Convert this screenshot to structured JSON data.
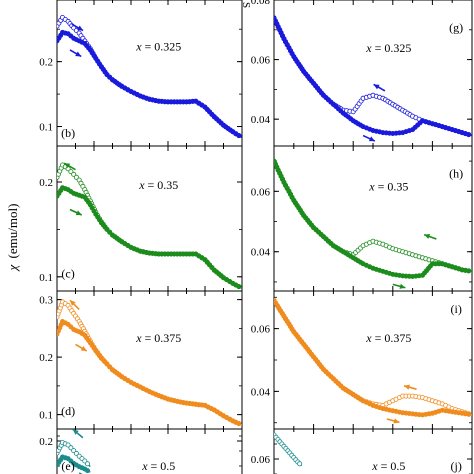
{
  "figure": {
    "ylabel_sym": "χ",
    "ylabel_unit": "(emu/mol)"
  },
  "chart_data": [
    {
      "type": "scatter",
      "panel": "(b)",
      "composition": "x = 0.325",
      "color": "#1a1adc",
      "ylim": [
        0.07,
        0.295
      ],
      "yticks": [
        0.1,
        0.2
      ],
      "ytick_labels": [
        "0.1",
        "0.2"
      ],
      "arrows": [
        "down-right along upper (open) branch near peak",
        "down-right along lower (solid) branch near peak"
      ],
      "series": [
        {
          "marker": "open",
          "x": [
            0.0,
            0.03,
            0.06,
            0.09,
            0.12,
            0.15,
            0.18,
            0.21,
            0.24,
            0.27,
            0.3,
            0.35,
            0.4,
            0.45,
            0.5,
            0.55,
            0.6,
            0.65,
            0.7,
            0.75,
            0.8,
            0.85,
            0.9,
            0.95,
            1.0
          ],
          "y": [
            0.255,
            0.268,
            0.262,
            0.252,
            0.244,
            0.232,
            0.22,
            0.205,
            0.192,
            0.18,
            0.172,
            0.162,
            0.154,
            0.147,
            0.142,
            0.139,
            0.138,
            0.138,
            0.138,
            0.139,
            0.13,
            0.115,
            0.102,
            0.092,
            0.083
          ]
        },
        {
          "marker": "solid",
          "x": [
            0.0,
            0.03,
            0.06,
            0.09,
            0.12,
            0.15,
            0.18,
            0.21,
            0.24,
            0.27,
            0.3,
            0.35,
            0.4,
            0.45,
            0.5,
            0.55,
            0.6,
            0.65,
            0.7,
            0.75,
            0.8,
            0.85,
            0.9,
            0.95,
            1.0
          ],
          "y": [
            0.232,
            0.245,
            0.243,
            0.236,
            0.232,
            0.228,
            0.218,
            0.205,
            0.192,
            0.18,
            0.172,
            0.162,
            0.154,
            0.147,
            0.142,
            0.139,
            0.138,
            0.138,
            0.138,
            0.139,
            0.13,
            0.115,
            0.102,
            0.092,
            0.083
          ]
        }
      ]
    },
    {
      "type": "scatter",
      "panel": "(g)",
      "composition": "x = 0.325",
      "color": "#1a1adc",
      "ylim": [
        0.031,
        0.08
      ],
      "yticks": [
        0.04,
        0.06,
        0.08
      ],
      "ytick_labels": [
        "0.04",
        "0.06",
        "0.08"
      ],
      "arrows": [
        "up-left above warming bump",
        "down-right below cooling minimum"
      ],
      "series": [
        {
          "marker": "open",
          "x": [
            0.0,
            0.05,
            0.1,
            0.15,
            0.2,
            0.25,
            0.3,
            0.35,
            0.4,
            0.45,
            0.5,
            0.55,
            0.6,
            0.65,
            0.7,
            0.75,
            0.8,
            0.85,
            0.9,
            0.95,
            1.0
          ],
          "y": [
            0.074,
            0.067,
            0.061,
            0.056,
            0.052,
            0.048,
            0.045,
            0.043,
            0.0425,
            0.047,
            0.048,
            0.047,
            0.045,
            0.043,
            0.041,
            0.0395,
            0.0385,
            0.0375,
            0.0365,
            0.0355,
            0.0345
          ]
        },
        {
          "marker": "solid",
          "x": [
            0.0,
            0.05,
            0.1,
            0.15,
            0.2,
            0.25,
            0.3,
            0.35,
            0.4,
            0.45,
            0.5,
            0.55,
            0.6,
            0.65,
            0.7,
            0.75,
            0.8,
            0.85,
            0.9,
            0.95,
            1.0
          ],
          "y": [
            0.074,
            0.067,
            0.061,
            0.056,
            0.052,
            0.048,
            0.045,
            0.042,
            0.0395,
            0.0375,
            0.0362,
            0.0355,
            0.0352,
            0.0355,
            0.0365,
            0.0395,
            0.0385,
            0.0375,
            0.0365,
            0.0355,
            0.0345
          ]
        }
      ]
    },
    {
      "type": "scatter",
      "panel": "(c)",
      "composition": "x = 0.35",
      "color": "#1c8c1c",
      "ylim": [
        0.085,
        0.238
      ],
      "yticks": [
        0.1,
        0.2
      ],
      "ytick_labels": [
        "0.1",
        "0.2"
      ],
      "arrows": [
        "up-left along upper branch",
        "down-right along lower branch"
      ],
      "series": [
        {
          "marker": "open",
          "x": [
            0.0,
            0.03,
            0.06,
            0.09,
            0.12,
            0.15,
            0.18,
            0.21,
            0.24,
            0.27,
            0.3,
            0.35,
            0.4,
            0.45,
            0.5,
            0.55,
            0.6,
            0.65,
            0.7,
            0.75,
            0.8,
            0.85,
            0.9,
            0.95,
            1.0
          ],
          "y": [
            0.205,
            0.218,
            0.214,
            0.208,
            0.202,
            0.192,
            0.18,
            0.168,
            0.158,
            0.15,
            0.144,
            0.137,
            0.131,
            0.127,
            0.125,
            0.124,
            0.124,
            0.124,
            0.124,
            0.124,
            0.118,
            0.107,
            0.099,
            0.093,
            0.088
          ]
        },
        {
          "marker": "solid",
          "x": [
            0.0,
            0.03,
            0.06,
            0.09,
            0.12,
            0.15,
            0.18,
            0.21,
            0.24,
            0.27,
            0.3,
            0.35,
            0.4,
            0.45,
            0.5,
            0.55,
            0.6,
            0.65,
            0.7,
            0.75,
            0.8,
            0.85,
            0.9,
            0.95,
            1.0
          ],
          "y": [
            0.185,
            0.194,
            0.192,
            0.188,
            0.186,
            0.184,
            0.176,
            0.166,
            0.157,
            0.15,
            0.144,
            0.137,
            0.131,
            0.127,
            0.125,
            0.124,
            0.124,
            0.124,
            0.124,
            0.124,
            0.118,
            0.107,
            0.099,
            0.093,
            0.088
          ]
        }
      ]
    },
    {
      "type": "scatter",
      "panel": "(h)",
      "composition": "x = 0.35",
      "color": "#1c8c1c",
      "ylim": [
        0.027,
        0.075
      ],
      "yticks": [
        0.04,
        0.06
      ],
      "ytick_labels": [
        "0.04",
        "0.06"
      ],
      "arrows": [
        "up-left above warming bump",
        "down-right below cooling minimum"
      ],
      "series": [
        {
          "marker": "open",
          "x": [
            0.0,
            0.05,
            0.1,
            0.15,
            0.2,
            0.25,
            0.3,
            0.35,
            0.4,
            0.45,
            0.5,
            0.55,
            0.6,
            0.65,
            0.7,
            0.75,
            0.8,
            0.85,
            0.9,
            0.95,
            1.0
          ],
          "y": [
            0.07,
            0.063,
            0.057,
            0.052,
            0.048,
            0.045,
            0.042,
            0.04,
            0.039,
            0.042,
            0.0435,
            0.0425,
            0.041,
            0.04,
            0.039,
            0.038,
            0.037,
            0.036,
            0.035,
            0.034,
            0.0335
          ]
        },
        {
          "marker": "solid",
          "x": [
            0.0,
            0.05,
            0.1,
            0.15,
            0.2,
            0.25,
            0.3,
            0.35,
            0.4,
            0.45,
            0.5,
            0.55,
            0.6,
            0.65,
            0.7,
            0.75,
            0.8,
            0.85,
            0.9,
            0.95,
            1.0
          ],
          "y": [
            0.07,
            0.063,
            0.057,
            0.052,
            0.048,
            0.045,
            0.042,
            0.04,
            0.038,
            0.036,
            0.0345,
            0.0335,
            0.0325,
            0.032,
            0.0318,
            0.0322,
            0.036,
            0.036,
            0.035,
            0.034,
            0.0335
          ]
        }
      ]
    },
    {
      "type": "scatter",
      "panel": "(d)",
      "composition": "x = 0.375",
      "color": "#f08c1e",
      "ylim": [
        0.075,
        0.315
      ],
      "yticks": [
        0.1,
        0.2,
        0.3
      ],
      "ytick_labels": [
        "0.1",
        "0.2",
        "0.3"
      ],
      "arrows": [
        "up-left along upper branch",
        "down-right along lower branch"
      ],
      "series": [
        {
          "marker": "open",
          "x": [
            0.0,
            0.03,
            0.06,
            0.09,
            0.12,
            0.15,
            0.18,
            0.21,
            0.24,
            0.27,
            0.3,
            0.35,
            0.4,
            0.45,
            0.5,
            0.55,
            0.6,
            0.65,
            0.7,
            0.75,
            0.8,
            0.85,
            0.9,
            0.95,
            1.0
          ],
          "y": [
            0.27,
            0.296,
            0.29,
            0.276,
            0.262,
            0.245,
            0.228,
            0.212,
            0.199,
            0.188,
            0.178,
            0.166,
            0.156,
            0.148,
            0.14,
            0.133,
            0.127,
            0.123,
            0.12,
            0.118,
            0.116,
            0.108,
            0.098,
            0.089,
            0.082
          ]
        },
        {
          "marker": "solid",
          "x": [
            0.0,
            0.03,
            0.06,
            0.09,
            0.12,
            0.15,
            0.18,
            0.21,
            0.24,
            0.27,
            0.3,
            0.35,
            0.4,
            0.45,
            0.5,
            0.55,
            0.6,
            0.65,
            0.7,
            0.75,
            0.8,
            0.85,
            0.9,
            0.95,
            1.0
          ],
          "y": [
            0.24,
            0.262,
            0.257,
            0.248,
            0.244,
            0.238,
            0.225,
            0.211,
            0.198,
            0.188,
            0.178,
            0.166,
            0.156,
            0.148,
            0.14,
            0.133,
            0.127,
            0.123,
            0.12,
            0.118,
            0.116,
            0.108,
            0.098,
            0.089,
            0.082
          ]
        }
      ]
    },
    {
      "type": "scatter",
      "panel": "(i)",
      "composition": "x = 0.375",
      "color": "#f08c1e",
      "ylim": [
        0.028,
        0.072
      ],
      "yticks": [
        0.04,
        0.06
      ],
      "ytick_labels": [
        "0.04",
        "0.06"
      ],
      "arrows": [
        "up-left above warming bump",
        "down-right below cooling minimum"
      ],
      "series": [
        {
          "marker": "open",
          "x": [
            0.0,
            0.05,
            0.1,
            0.15,
            0.2,
            0.25,
            0.3,
            0.35,
            0.4,
            0.45,
            0.5,
            0.55,
            0.6,
            0.65,
            0.7,
            0.75,
            0.8,
            0.85,
            0.9,
            0.95,
            1.0
          ],
          "y": [
            0.069,
            0.064,
            0.059,
            0.055,
            0.051,
            0.047,
            0.044,
            0.041,
            0.039,
            0.037,
            0.036,
            0.0355,
            0.037,
            0.0385,
            0.0385,
            0.038,
            0.037,
            0.036,
            0.0345,
            0.0335,
            0.0325
          ]
        },
        {
          "marker": "solid",
          "x": [
            0.0,
            0.05,
            0.1,
            0.15,
            0.2,
            0.25,
            0.3,
            0.35,
            0.4,
            0.45,
            0.5,
            0.55,
            0.6,
            0.65,
            0.7,
            0.75,
            0.8,
            0.85,
            0.9,
            0.95,
            1.0
          ],
          "y": [
            0.069,
            0.064,
            0.059,
            0.055,
            0.051,
            0.047,
            0.044,
            0.041,
            0.039,
            0.037,
            0.0355,
            0.0345,
            0.0338,
            0.0332,
            0.0328,
            0.0325,
            0.033,
            0.034,
            0.0335,
            0.033,
            0.0325
          ]
        }
      ]
    },
    {
      "type": "scatter",
      "panel": "(e)",
      "composition": "x = 0.5",
      "color": "#1a8c8c",
      "ylim": [
        0.14,
        0.215
      ],
      "yticks": [
        0.2
      ],
      "ytick_labels": [
        "0.2"
      ],
      "arrows": [
        "up-left along upper branch",
        "down-right along lower branch"
      ],
      "series": [
        {
          "marker": "open",
          "x": [
            0.0,
            0.03,
            0.06,
            0.09,
            0.12,
            0.15,
            0.18
          ],
          "y": [
            0.185,
            0.198,
            0.195,
            0.188,
            0.181,
            0.175,
            0.168
          ]
        },
        {
          "marker": "solid",
          "x": [
            0.0,
            0.03,
            0.06,
            0.09,
            0.12,
            0.15,
            0.18
          ],
          "y": [
            0.17,
            0.18,
            0.178,
            0.172,
            0.168,
            0.165,
            0.161
          ]
        }
      ]
    },
    {
      "type": "scatter",
      "panel": "(j)",
      "composition": "x = 0.5",
      "color": "#1a8c8c",
      "ylim": [
        0.05,
        0.07
      ],
      "yticks": [
        0.06
      ],
      "ytick_labels": [
        "0.06"
      ],
      "arrows": [],
      "series": [
        {
          "marker": "open",
          "x": [
            0.0,
            0.02,
            0.04,
            0.06,
            0.08,
            0.1,
            0.12,
            0.14
          ],
          "y": [
            0.068,
            0.0665,
            0.065,
            0.0635,
            0.062,
            0.0605,
            0.059,
            0.0578
          ]
        }
      ]
    }
  ],
  "partial": {
    "top_right_glyph": "S"
  }
}
